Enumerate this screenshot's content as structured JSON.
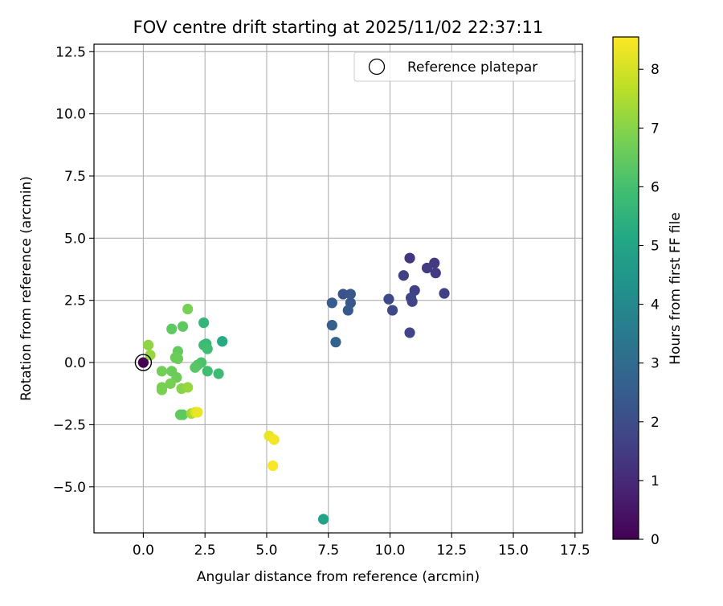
{
  "chart_data": {
    "type": "scatter",
    "title": "FOV centre drift starting at 2025/11/02 22:37:11",
    "xlabel": "Angular distance from reference (arcmin)",
    "ylabel": "Rotation from reference (arcmin)",
    "xlim": [
      -2.0,
      17.8
    ],
    "ylim": [
      -6.85,
      12.8
    ],
    "xticks": [
      0.0,
      2.5,
      5.0,
      7.5,
      10.0,
      12.5,
      15.0,
      17.5
    ],
    "xtick_labels": [
      "0.0",
      "2.5",
      "5.0",
      "7.5",
      "10.0",
      "12.5",
      "15.0",
      "17.5"
    ],
    "yticks": [
      -5.0,
      -2.5,
      0.0,
      2.5,
      5.0,
      7.5,
      10.0,
      12.5
    ],
    "ytick_labels": [
      "−5.0",
      "−2.5",
      "0.0",
      "2.5",
      "5.0",
      "7.5",
      "10.0",
      "12.5"
    ],
    "grid": true,
    "legend": {
      "location": "top-right",
      "entries": [
        "Reference platepar"
      ]
    },
    "reference_point": {
      "x": 0.0,
      "y": 0.0,
      "label": "Reference platepar"
    },
    "colorbar": {
      "label": "Hours from first FF file",
      "colormap": "viridis",
      "range": [
        0,
        8.55
      ],
      "ticks": [
        0,
        1,
        2,
        3,
        4,
        5,
        6,
        7,
        8
      ],
      "tick_labels": [
        "0",
        "1",
        "2",
        "3",
        "4",
        "5",
        "6",
        "7",
        "8"
      ]
    },
    "points": [
      {
        "x": 0.0,
        "y": 0.0,
        "c": 0.0
      },
      {
        "x": 10.8,
        "y": 4.2,
        "c": 1.3
      },
      {
        "x": 11.8,
        "y": 4.0,
        "c": 1.4
      },
      {
        "x": 11.5,
        "y": 3.8,
        "c": 1.5
      },
      {
        "x": 11.85,
        "y": 3.6,
        "c": 1.5
      },
      {
        "x": 10.55,
        "y": 3.5,
        "c": 1.6
      },
      {
        "x": 11.0,
        "y": 2.9,
        "c": 1.6
      },
      {
        "x": 12.2,
        "y": 2.78,
        "c": 1.6
      },
      {
        "x": 10.85,
        "y": 2.6,
        "c": 1.7
      },
      {
        "x": 10.9,
        "y": 2.45,
        "c": 1.7
      },
      {
        "x": 10.8,
        "y": 1.2,
        "c": 1.7
      },
      {
        "x": 9.95,
        "y": 2.55,
        "c": 1.9
      },
      {
        "x": 10.1,
        "y": 2.1,
        "c": 1.9
      },
      {
        "x": 8.1,
        "y": 2.75,
        "c": 2.2
      },
      {
        "x": 8.4,
        "y": 2.75,
        "c": 2.3
      },
      {
        "x": 8.4,
        "y": 2.4,
        "c": 2.3
      },
      {
        "x": 8.3,
        "y": 2.1,
        "c": 2.4
      },
      {
        "x": 7.65,
        "y": 2.4,
        "c": 2.5
      },
      {
        "x": 7.65,
        "y": 1.5,
        "c": 2.6
      },
      {
        "x": 7.8,
        "y": 0.82,
        "c": 2.7
      },
      {
        "x": 7.3,
        "y": -6.3,
        "c": 4.9
      },
      {
        "x": 3.2,
        "y": 0.85,
        "c": 5.2
      },
      {
        "x": 2.45,
        "y": 1.6,
        "c": 5.6
      },
      {
        "x": 2.55,
        "y": 0.75,
        "c": 5.7
      },
      {
        "x": 2.45,
        "y": 0.7,
        "c": 5.8
      },
      {
        "x": 2.6,
        "y": 0.55,
        "c": 5.9
      },
      {
        "x": 2.6,
        "y": -0.35,
        "c": 5.9
      },
      {
        "x": 3.05,
        "y": -0.45,
        "c": 5.8
      },
      {
        "x": 2.35,
        "y": 0.0,
        "c": 6.1
      },
      {
        "x": 2.2,
        "y": -0.1,
        "c": 6.2
      },
      {
        "x": 2.1,
        "y": -0.2,
        "c": 6.3
      },
      {
        "x": 1.15,
        "y": 1.35,
        "c": 6.4
      },
      {
        "x": 1.6,
        "y": 1.45,
        "c": 6.4
      },
      {
        "x": 1.4,
        "y": 0.45,
        "c": 6.5
      },
      {
        "x": 1.3,
        "y": 0.2,
        "c": 6.6
      },
      {
        "x": 1.4,
        "y": 0.15,
        "c": 6.6
      },
      {
        "x": 1.8,
        "y": 2.15,
        "c": 6.8
      },
      {
        "x": 1.15,
        "y": -0.35,
        "c": 6.6
      },
      {
        "x": 1.35,
        "y": -0.6,
        "c": 6.6
      },
      {
        "x": 0.75,
        "y": -0.35,
        "c": 6.7
      },
      {
        "x": 1.1,
        "y": -0.85,
        "c": 6.8
      },
      {
        "x": 0.75,
        "y": -1.0,
        "c": 6.8
      },
      {
        "x": 0.75,
        "y": -1.1,
        "c": 6.8
      },
      {
        "x": 1.5,
        "y": -2.1,
        "c": 6.5
      },
      {
        "x": 1.6,
        "y": -2.1,
        "c": 6.4
      },
      {
        "x": 1.55,
        "y": -1.05,
        "c": 7.0
      },
      {
        "x": 1.8,
        "y": -1.0,
        "c": 7.2
      },
      {
        "x": 0.2,
        "y": 0.7,
        "c": 7.1
      },
      {
        "x": 0.28,
        "y": 0.3,
        "c": 7.2
      },
      {
        "x": 1.95,
        "y": -2.05,
        "c": 7.4
      },
      {
        "x": 2.1,
        "y": -2.0,
        "c": 7.9
      },
      {
        "x": 2.15,
        "y": -2.0,
        "c": 8.1
      },
      {
        "x": 2.2,
        "y": -2.0,
        "c": 8.3
      },
      {
        "x": 5.1,
        "y": -2.95,
        "c": 8.3
      },
      {
        "x": 5.3,
        "y": -3.1,
        "c": 8.4
      },
      {
        "x": 5.25,
        "y": -4.15,
        "c": 8.5
      }
    ]
  }
}
